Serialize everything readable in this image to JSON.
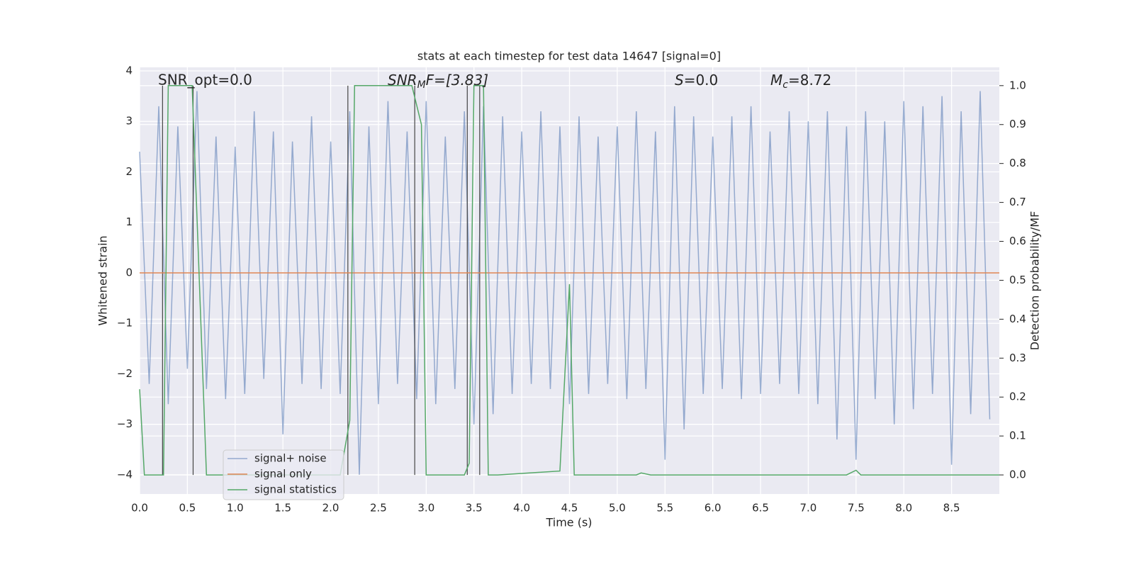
{
  "chart_data": {
    "type": "line",
    "title": "stats at each timestep for test data 14647 [signal=0]",
    "xlabel": "Time (s)",
    "ylabel": "Whitened strain",
    "y2label": "Detection probability/MF",
    "annotations": [
      "SNR_opt=0.0",
      {
        "base": "SNR",
        "sub": "M",
        "rest": "F=[3.83]"
      },
      {
        "base": "S",
        "rest": "=0.0"
      },
      {
        "base": "M",
        "sub": "c",
        "rest": "=8.72"
      }
    ],
    "xlim": [
      0,
      9.0
    ],
    "ylim": [
      -4.38,
      4.07
    ],
    "y2lim": [
      -0.049,
      1.047
    ],
    "xticks": [
      {
        "value": 0,
        "label": "0.0"
      },
      {
        "value": 0.5,
        "label": "0.5"
      },
      {
        "value": 1,
        "label": "1.0"
      },
      {
        "value": 1.5,
        "label": "1.5"
      },
      {
        "value": 2,
        "label": "2.0"
      },
      {
        "value": 2.5,
        "label": "2.5"
      },
      {
        "value": 3,
        "label": "3.0"
      },
      {
        "value": 3.5,
        "label": "3.5"
      },
      {
        "value": 4,
        "label": "4.0"
      },
      {
        "value": 4.5,
        "label": "4.5"
      },
      {
        "value": 5,
        "label": "5.0"
      },
      {
        "value": 5.5,
        "label": "5.5"
      },
      {
        "value": 6,
        "label": "6.0"
      },
      {
        "value": 6.5,
        "label": "6.5"
      },
      {
        "value": 7,
        "label": "7.0"
      },
      {
        "value": 7.5,
        "label": "7.5"
      },
      {
        "value": 8,
        "label": "8.0"
      },
      {
        "value": 8.5,
        "label": "8.5"
      }
    ],
    "yticks": [
      {
        "value": -4,
        "label": "−4"
      },
      {
        "value": -3,
        "label": "−3"
      },
      {
        "value": -2,
        "label": "−2"
      },
      {
        "value": -1,
        "label": "−1"
      },
      0,
      1,
      2,
      3,
      4
    ],
    "y2ticks": [
      {
        "value": 0,
        "label": "0.0"
      },
      {
        "value": 0.1,
        "label": "0.1"
      },
      {
        "value": 0.2,
        "label": "0.2"
      },
      {
        "value": 0.3,
        "label": "0.3"
      },
      {
        "value": 0.4,
        "label": "0.4"
      },
      {
        "value": 0.5,
        "label": "0.5"
      },
      {
        "value": 0.6,
        "label": "0.6"
      },
      {
        "value": 0.7,
        "label": "0.7"
      },
      {
        "value": 0.8,
        "label": "0.8"
      },
      {
        "value": 0.9,
        "label": "0.9"
      },
      {
        "value": 1,
        "label": "1.0"
      }
    ],
    "grid": true,
    "legend": "lower left",
    "vlines": [
      0.24,
      0.56,
      2.18,
      2.88,
      3.43,
      3.56
    ],
    "vlines_range": [
      0,
      1
    ],
    "vlines_color": "#444444",
    "series": [
      {
        "name": "signal+ noise",
        "color": "#4c72b0",
        "x": [
          0,
          0.1,
          0.2,
          0.3,
          0.4,
          0.5,
          0.6,
          0.7,
          0.8,
          0.9,
          1,
          1.1,
          1.2,
          1.3,
          1.4,
          1.5,
          1.6,
          1.7,
          1.8,
          1.9,
          2,
          2.1,
          2.2,
          2.3,
          2.4,
          2.5,
          2.6,
          2.7,
          2.8,
          2.9,
          3,
          3.1,
          3.2,
          3.3,
          3.4,
          3.5,
          3.6,
          3.7,
          3.8,
          3.9,
          4,
          4.1,
          4.2,
          4.3,
          4.4,
          4.5,
          4.6,
          4.7,
          4.8,
          4.9,
          5,
          5.1,
          5.2,
          5.3,
          5.4,
          5.5,
          5.6,
          5.7,
          5.8,
          5.9,
          6,
          6.1,
          6.2,
          6.3,
          6.4,
          6.5,
          6.6,
          6.7,
          6.8,
          6.9,
          7,
          7.1,
          7.2,
          7.3,
          7.4,
          7.5,
          7.6,
          7.7,
          7.8,
          7.9,
          8,
          8.1,
          8.2,
          8.3,
          8.4,
          8.5,
          8.6,
          8.7,
          8.8,
          8.9
        ],
        "values": [
          2.4,
          -2.2,
          3.3,
          -2.6,
          2.9,
          -1.9,
          3.6,
          -2.3,
          2.7,
          -2.5,
          2.5,
          -2.4,
          3.2,
          -2.1,
          2.8,
          -3.2,
          2.6,
          -2.2,
          3.1,
          -2.3,
          2.6,
          -2.4,
          3.2,
          -4.0,
          2.9,
          -2.6,
          3.4,
          -2.2,
          2.8,
          -2.5,
          3.4,
          -2.6,
          2.7,
          -2.3,
          3.2,
          -3.0,
          3.3,
          -2.8,
          3.1,
          -2.4,
          2.8,
          -2.2,
          3.2,
          -2.3,
          2.9,
          -2.6,
          3.1,
          -2.4,
          2.7,
          -2.2,
          2.9,
          -2.5,
          3.2,
          -2.3,
          2.8,
          -3.7,
          3.3,
          -3.1,
          3.1,
          -2.4,
          2.7,
          -2.3,
          3.1,
          -2.5,
          3.3,
          -2.4,
          2.8,
          -2.2,
          3.2,
          -2.4,
          3.0,
          -2.6,
          3.2,
          -3.3,
          2.9,
          -3.7,
          3.2,
          -2.5,
          3.0,
          -3.0,
          3.4,
          -2.7,
          3.3,
          -2.4,
          3.5,
          -3.8,
          3.2,
          -2.8,
          3.6,
          -2.9
        ]
      },
      {
        "name": "signal only",
        "color": "#dd8452",
        "x": [
          0,
          9.0
        ],
        "values": [
          0,
          0
        ]
      },
      {
        "name": "signal statistics",
        "color": "#55a868",
        "axis": "y2",
        "x": [
          0,
          0.05,
          0.25,
          0.3,
          0.55,
          0.7,
          2.1,
          2.2,
          2.25,
          2.85,
          2.95,
          3.0,
          3.4,
          3.45,
          3.5,
          3.6,
          3.65,
          3.75,
          4.4,
          4.5,
          4.55,
          5.2,
          5.25,
          5.35,
          7.4,
          7.5,
          7.55,
          9.0
        ],
        "values": [
          0.22,
          0,
          0,
          1,
          1,
          0,
          0,
          0.14,
          1,
          1,
          0.9,
          0,
          0,
          0.03,
          1,
          1,
          0,
          0,
          0.01,
          0.49,
          0,
          0,
          0.005,
          0,
          0,
          0.012,
          0,
          0
        ]
      }
    ]
  }
}
